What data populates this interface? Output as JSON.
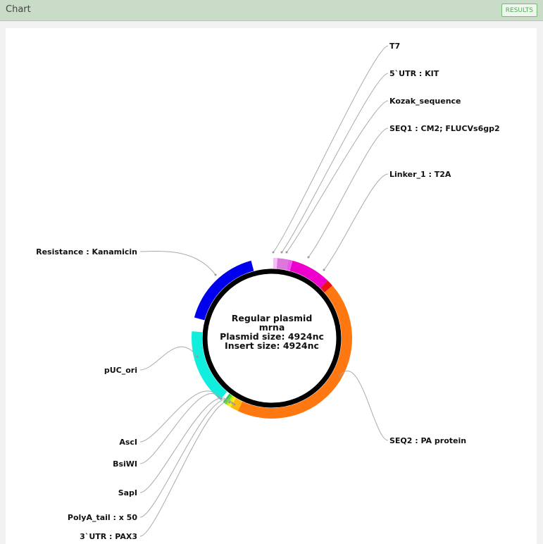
{
  "header": {
    "title": "Chart",
    "results_label": "RESULTS"
  },
  "plasmid": {
    "center_lines": [
      "Regular plasmid",
      "mrna",
      "Plasmid size: 4924nc",
      "Insert size: 4924nc"
    ],
    "features": [
      {
        "name": "T7",
        "start_deg": 1,
        "end_deg": 4,
        "color": "#f2c0f2"
      },
      {
        "name": "5`UTR : KIT",
        "start_deg": 4,
        "end_deg": 12,
        "color": "#dd77dd"
      },
      {
        "name": "Kozak_sequence",
        "start_deg": 12,
        "end_deg": 15,
        "color": "#ee55ee"
      },
      {
        "name": "SEQ1 : CM2; FLUCVs6gp2",
        "start_deg": 15,
        "end_deg": 44,
        "color": "#ee00cc"
      },
      {
        "name": "Linker_1 : T2A",
        "start_deg": 44,
        "end_deg": 49,
        "color": "#ee1111"
      },
      {
        "name": "SEQ2 : PA protein",
        "start_deg": 49,
        "end_deg": 205,
        "color": "#ff7711"
      },
      {
        "name": "3`UTR : PAX3",
        "start_deg": 205,
        "end_deg": 211,
        "color": "#ffbb11"
      },
      {
        "name": "PolyA_tail : x 50",
        "start_deg": 211,
        "end_deg": 213,
        "color": "#ffee00"
      },
      {
        "name": "SapI",
        "start_deg": 213,
        "end_deg": 214.5,
        "color": "#bbee22"
      },
      {
        "name": "BsiWI",
        "start_deg": 214.5,
        "end_deg": 216,
        "color": "#66dd22"
      },
      {
        "name": "AscI",
        "start_deg": 216,
        "end_deg": 217.5,
        "color": "#22cc55"
      },
      {
        "name": "pUC_ori",
        "start_deg": 220,
        "end_deg": 275,
        "color": "#11eedd"
      },
      {
        "name": "Resistance : Kanamicin",
        "start_deg": 285,
        "end_deg": 345,
        "color": "#0000ee"
      }
    ],
    "labels": [
      {
        "text": "T7",
        "side": "right",
        "feature": 0
      },
      {
        "text": "5`UTR : KIT",
        "side": "right",
        "feature": 1
      },
      {
        "text": "Kozak_sequence",
        "side": "right",
        "feature": 2
      },
      {
        "text": "SEQ1 : CM2; FLUCVs6gp2",
        "side": "right",
        "feature": 3
      },
      {
        "text": "Linker_1 : T2A",
        "side": "right",
        "feature": 4
      },
      {
        "text": "SEQ2 : PA protein",
        "side": "right",
        "feature": 5
      },
      {
        "text": "Resistance : Kanamicin",
        "side": "left",
        "feature": 12
      },
      {
        "text": "pUC_ori",
        "side": "left",
        "feature": 11
      },
      {
        "text": "AscI",
        "side": "left",
        "feature": 10
      },
      {
        "text": "BsiWI",
        "side": "left",
        "feature": 9
      },
      {
        "text": "SapI",
        "side": "left",
        "feature": 8
      },
      {
        "text": "PolyA_tail : x 50",
        "side": "left",
        "feature": 7
      },
      {
        "text": "3`UTR : PAX3",
        "side": "left",
        "feature": 6
      }
    ]
  }
}
